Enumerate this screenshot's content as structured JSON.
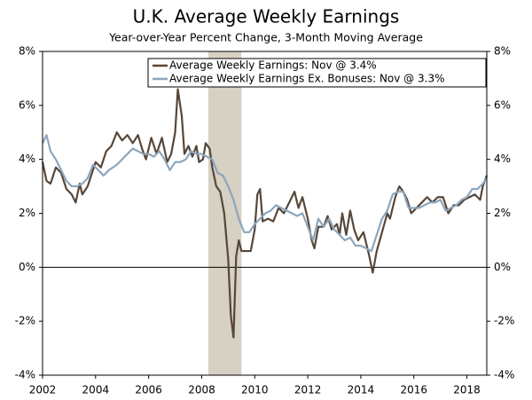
{
  "chart_data": {
    "type": "line",
    "title": "U.K. Average Weekly Earnings",
    "subtitle": "Year-over-Year Percent Change, 3-Month Moving Average",
    "xlim": [
      2002,
      2018.75
    ],
    "xticks": [
      2002,
      2004,
      2006,
      2008,
      2010,
      2012,
      2014,
      2016,
      2018
    ],
    "ylim": [
      -4,
      8
    ],
    "yticks": [
      {
        "value": -4,
        "label": "-4%"
      },
      {
        "value": -2,
        "label": "-2%"
      },
      {
        "value": 0,
        "label": "0%"
      },
      {
        "value": 2,
        "label": "2%"
      },
      {
        "value": 4,
        "label": "4%"
      },
      {
        "value": 6,
        "label": "6%"
      },
      {
        "value": 8,
        "label": "8%"
      }
    ],
    "y2lim": [
      -4,
      8
    ],
    "y2ticks": [
      {
        "value": -4,
        "label": "-4%"
      },
      {
        "value": -2,
        "label": "-2%"
      },
      {
        "value": 0,
        "label": "0%"
      },
      {
        "value": 2,
        "label": "2%"
      },
      {
        "value": 4,
        "label": "4%"
      },
      {
        "value": 6,
        "label": "6%"
      },
      {
        "value": 8,
        "label": "8%"
      }
    ],
    "shaded_ranges": [
      [
        2008.25,
        2009.5
      ]
    ],
    "shade_color": "#d6d1c3",
    "legend": "top-right",
    "series": [
      {
        "name": "Average Weekly Earnings: Nov @ 3.4%",
        "color": "#574739",
        "x": [
          2002.0,
          2002.15,
          2002.3,
          2002.5,
          2002.7,
          2002.9,
          2003.1,
          2003.25,
          2003.4,
          2003.5,
          2003.7,
          2003.9,
          2004.0,
          2004.2,
          2004.4,
          2004.6,
          2004.8,
          2005.0,
          2005.2,
          2005.4,
          2005.6,
          2005.75,
          2005.9,
          2006.1,
          2006.3,
          2006.5,
          2006.7,
          2006.85,
          2007.0,
          2007.1,
          2007.25,
          2007.35,
          2007.5,
          2007.65,
          2007.8,
          2007.9,
          2008.05,
          2008.15,
          2008.3,
          2008.4,
          2008.55,
          2008.7,
          2008.85,
          2009.0,
          2009.1,
          2009.2,
          2009.3,
          2009.4,
          2009.5,
          2009.7,
          2009.85,
          2010.0,
          2010.1,
          2010.2,
          2010.3,
          2010.5,
          2010.7,
          2010.9,
          2011.1,
          2011.3,
          2011.5,
          2011.65,
          2011.8,
          2012.0,
          2012.15,
          2012.25,
          2012.4,
          2012.6,
          2012.75,
          2012.9,
          2013.1,
          2013.2,
          2013.3,
          2013.45,
          2013.6,
          2013.75,
          2013.9,
          2014.1,
          2014.3,
          2014.45,
          2014.6,
          2014.8,
          2015.0,
          2015.1,
          2015.3,
          2015.45,
          2015.6,
          2015.75,
          2015.9,
          2016.1,
          2016.3,
          2016.5,
          2016.7,
          2016.9,
          2017.1,
          2017.3,
          2017.5,
          2017.7,
          2017.9,
          2018.1,
          2018.3,
          2018.5,
          2018.6,
          2018.75
        ],
        "values": [
          3.9,
          3.2,
          3.1,
          3.7,
          3.5,
          2.9,
          2.7,
          2.4,
          3.1,
          2.7,
          3.0,
          3.6,
          3.9,
          3.7,
          4.3,
          4.5,
          5.0,
          4.7,
          4.9,
          4.6,
          4.9,
          4.4,
          4.0,
          4.8,
          4.2,
          4.8,
          3.9,
          4.2,
          5.0,
          6.6,
          5.6,
          4.2,
          4.5,
          4.1,
          4.5,
          3.9,
          4.0,
          4.6,
          4.4,
          3.7,
          3.0,
          2.8,
          2.0,
          0.3,
          -1.8,
          -2.6,
          0.4,
          1.0,
          0.6,
          0.6,
          0.6,
          1.4,
          2.7,
          2.9,
          1.7,
          1.8,
          1.7,
          2.2,
          2.0,
          2.4,
          2.8,
          2.2,
          2.6,
          1.8,
          1.0,
          0.7,
          1.5,
          1.5,
          1.9,
          1.4,
          1.6,
          1.2,
          2.0,
          1.2,
          2.1,
          1.4,
          1.0,
          1.3,
          0.5,
          -0.2,
          0.6,
          1.3,
          2.0,
          1.8,
          2.6,
          3.0,
          2.8,
          2.5,
          2.0,
          2.2,
          2.4,
          2.6,
          2.4,
          2.6,
          2.6,
          2.0,
          2.3,
          2.3,
          2.5,
          2.6,
          2.7,
          2.5,
          3.0,
          3.4
        ]
      },
      {
        "name": "Average Weekly Earnings Ex. Bonuses: Nov @ 3.3%",
        "color": "#8da6bd",
        "x": [
          2002.0,
          2002.15,
          2002.3,
          2002.5,
          2002.7,
          2002.9,
          2003.1,
          2003.3,
          2003.5,
          2003.7,
          2003.9,
          2004.1,
          2004.3,
          2004.5,
          2004.8,
          2005.0,
          2005.2,
          2005.4,
          2005.6,
          2005.8,
          2006.0,
          2006.2,
          2006.4,
          2006.6,
          2006.8,
          2007.0,
          2007.2,
          2007.4,
          2007.6,
          2007.8,
          2008.0,
          2008.2,
          2008.4,
          2008.6,
          2008.8,
          2009.0,
          2009.2,
          2009.4,
          2009.6,
          2009.8,
          2010.0,
          2010.2,
          2010.4,
          2010.6,
          2010.8,
          2011.0,
          2011.2,
          2011.4,
          2011.6,
          2011.8,
          2012.0,
          2012.2,
          2012.4,
          2012.6,
          2012.8,
          2013.0,
          2013.2,
          2013.4,
          2013.6,
          2013.8,
          2014.0,
          2014.2,
          2014.4,
          2014.6,
          2014.8,
          2015.0,
          2015.2,
          2015.4,
          2015.6,
          2015.8,
          2016.0,
          2016.2,
          2016.4,
          2016.6,
          2016.8,
          2017.0,
          2017.2,
          2017.4,
          2017.6,
          2017.8,
          2018.0,
          2018.2,
          2018.4,
          2018.6,
          2018.75
        ],
        "values": [
          4.6,
          4.9,
          4.3,
          4.0,
          3.6,
          3.2,
          3.0,
          3.0,
          3.1,
          3.3,
          3.8,
          3.6,
          3.4,
          3.6,
          3.8,
          4.0,
          4.2,
          4.4,
          4.3,
          4.2,
          4.2,
          4.1,
          4.3,
          4.0,
          3.6,
          3.9,
          3.9,
          4.0,
          4.3,
          4.2,
          4.2,
          4.1,
          4.0,
          3.5,
          3.4,
          3.0,
          2.5,
          1.8,
          1.3,
          1.3,
          1.6,
          1.8,
          2.0,
          2.1,
          2.3,
          2.2,
          2.1,
          2.0,
          1.9,
          2.0,
          1.5,
          1.0,
          1.8,
          1.5,
          1.8,
          1.4,
          1.2,
          1.0,
          1.1,
          0.8,
          0.8,
          0.7,
          0.6,
          1.2,
          1.8,
          2.1,
          2.7,
          2.8,
          2.8,
          2.2,
          2.2,
          2.2,
          2.3,
          2.4,
          2.4,
          2.5,
          2.1,
          2.2,
          2.3,
          2.5,
          2.6,
          2.9,
          2.9,
          3.1,
          3.3
        ]
      }
    ]
  }
}
